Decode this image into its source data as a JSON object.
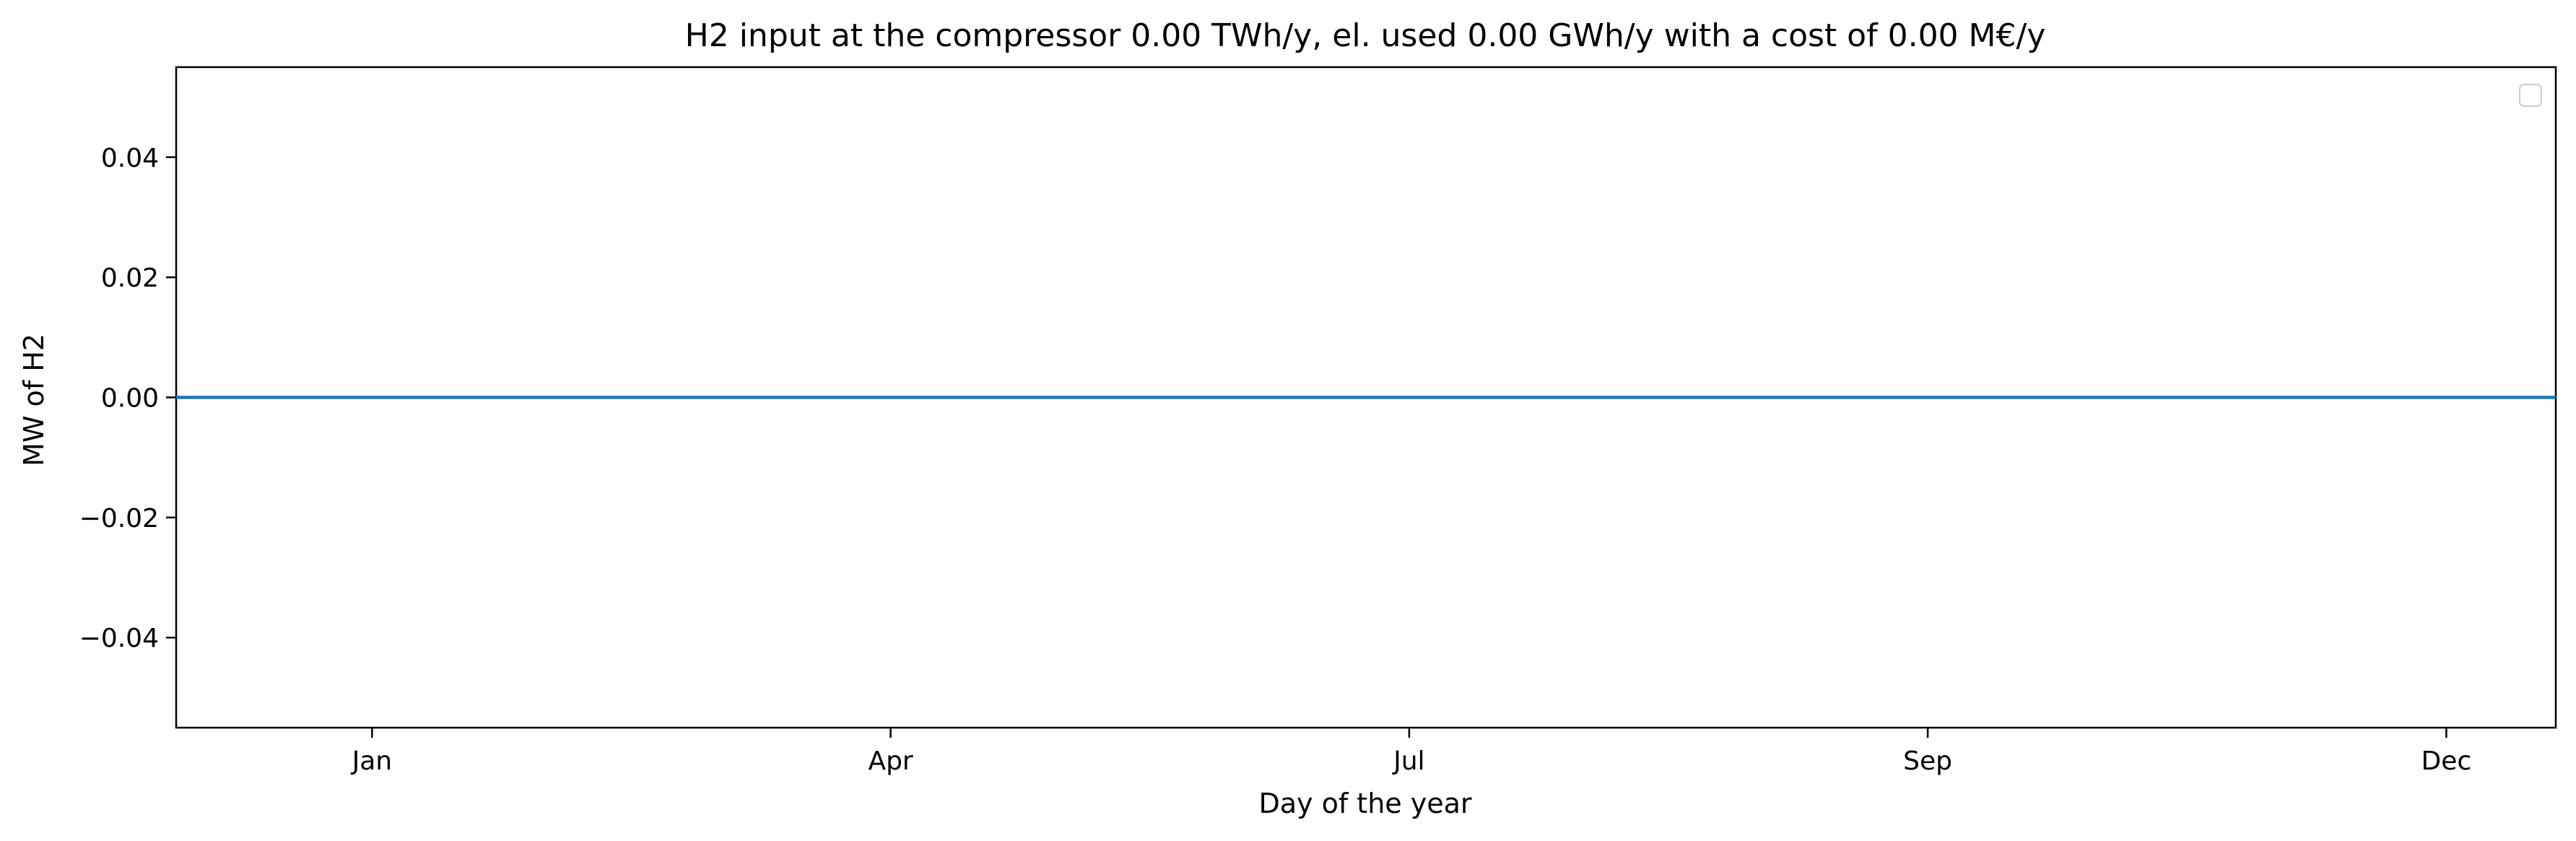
{
  "chart_data": {
    "type": "line",
    "title": "H2 input at the compressor 0.00 TWh/y, el. used 0.00 GWh/y with a cost of 0.00 M€/y",
    "xlabel": "Day of the year",
    "ylabel": "MW of H2",
    "x_ticks": [
      {
        "label": "Jan",
        "day": 1
      },
      {
        "label": "Apr",
        "day": 91
      },
      {
        "label": "Jul",
        "day": 181
      },
      {
        "label": "Sep",
        "day": 271
      },
      {
        "label": "Dec",
        "day": 361
      }
    ],
    "xlim": [
      -33,
      380
    ],
    "y_ticks": [
      {
        "label": "0.04",
        "value": 0.04
      },
      {
        "label": "0.02",
        "value": 0.02
      },
      {
        "label": "0.00",
        "value": 0.0
      },
      {
        "label": "−0.02",
        "value": -0.02
      },
      {
        "label": "−0.04",
        "value": -0.04
      }
    ],
    "ylim": [
      -0.055,
      0.055
    ],
    "grid": false,
    "legend": {
      "placement": "upper right",
      "entries": []
    },
    "series": [
      {
        "color": "#1f77b4",
        "x": [
          -33,
          380
        ],
        "values": [
          0,
          0
        ]
      }
    ]
  }
}
